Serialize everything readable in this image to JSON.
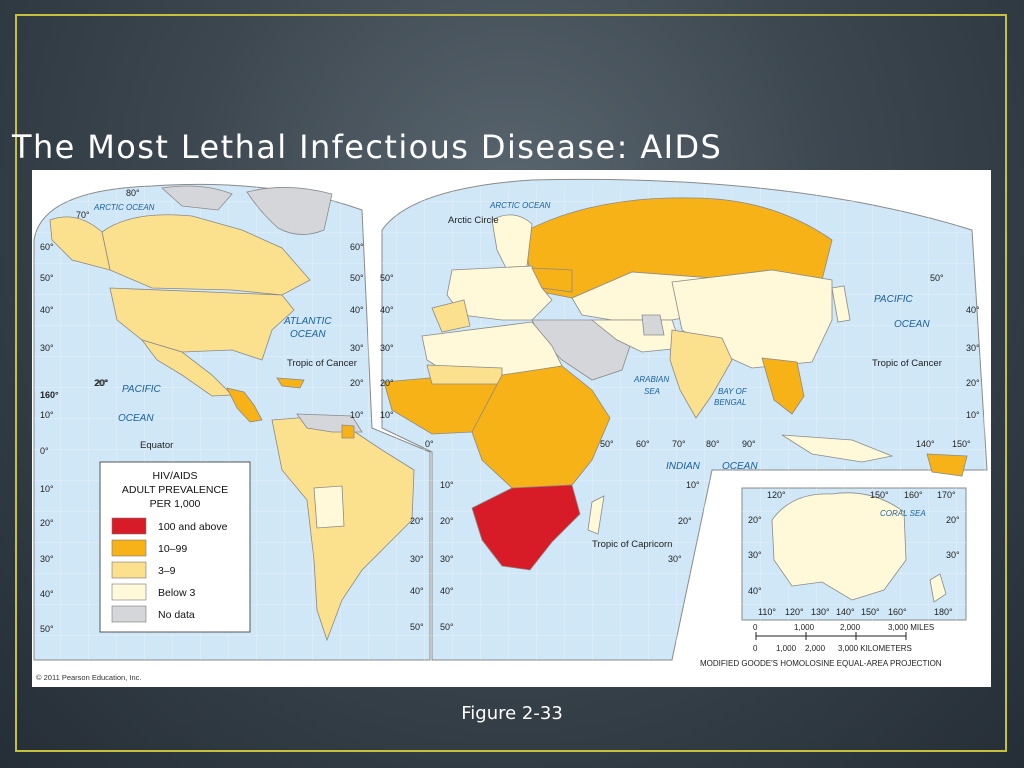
{
  "slide": {
    "title": "The Most Lethal Infectious Disease: AIDS",
    "caption": "Figure 2-33"
  },
  "map": {
    "copyright": "© 2011 Pearson Education, Inc.",
    "projection_note": "MODIFIED GOODE'S HOMOLOSINE EQUAL-AREA PROJECTION",
    "places": {
      "arctic_ocean_left": "ARCTIC OCEAN",
      "arctic_ocean_right": "ARCTIC OCEAN",
      "arctic_circle": "Arctic Circle",
      "atlantic_line1": "ATLANTIC",
      "atlantic_line2": "OCEAN",
      "tropic_cancer_left": "Tropic of Cancer",
      "tropic_cancer_right": "Tropic of Cancer",
      "pacific_left_line1": "PACIFIC",
      "pacific_left_line2": "OCEAN",
      "pacific_right_line1": "PACIFIC",
      "pacific_right_line2": "OCEAN",
      "equator": "Equator",
      "arabian_line1": "ARABIAN",
      "arabian_line2": "SEA",
      "bengal_line1": "BAY OF",
      "bengal_line2": "BENGAL",
      "indian": "INDIAN",
      "indian_ocean": "OCEAN",
      "tropic_capricorn": "Tropic of Capricorn",
      "coral_sea": "CORAL SEA"
    },
    "graticule": {
      "left_lats": [
        "80°",
        "70°",
        "60°",
        "50°",
        "40°",
        "30°",
        "20°",
        "10°",
        "0°",
        "10°",
        "20°",
        "30°",
        "40°",
        "50°"
      ],
      "mid_lats": [
        "60°",
        "50°",
        "40°",
        "30°",
        "20°",
        "10°"
      ],
      "mid_lats_south": [
        "20°",
        "30°",
        "40°",
        "50°"
      ],
      "center_lats": [
        "50°",
        "40°",
        "30°",
        "20°",
        "10°",
        "0°",
        "10°",
        "20°",
        "30°",
        "40°",
        "50°"
      ],
      "africa_lats": [
        "10°",
        "20°",
        "30°",
        "40°",
        "50°"
      ],
      "right_lats": [
        "50°",
        "40°",
        "30°",
        "20°",
        "10°"
      ],
      "east_lats_s": [
        "10°",
        "20°",
        "30°"
      ],
      "mid_lons": [
        "50°",
        "60°",
        "70°",
        "80°",
        "90°"
      ],
      "east_lons": [
        "140°",
        "150°"
      ],
      "inset_top_lons": [
        "120°",
        "150°",
        "160°",
        "170°"
      ],
      "inset_bottom_lons": [
        "110°",
        "120°",
        "130°",
        "140°",
        "150°",
        "160°",
        "180°"
      ],
      "inset_left_lats": [
        "20°",
        "30°",
        "40°"
      ],
      "inset_right_lats": [
        "20°",
        "30°"
      ],
      "far_lon": "160°",
      "lat_20": "20°"
    },
    "scale_bar": {
      "miles": [
        "0",
        "1,000",
        "2,000",
        "3,000 MILES"
      ],
      "km": [
        "0",
        "1,000",
        "2,000",
        "3,000 KILOMETERS"
      ]
    },
    "legend": {
      "title_line1": "HIV/AIDS",
      "title_line2": "ADULT PREVALENCE",
      "title_line3": "PER 1,000",
      "items": [
        {
          "label": "100 and above",
          "color": "#d81c27"
        },
        {
          "label": "10–99",
          "color": "#f7b217"
        },
        {
          "label": "3–9",
          "color": "#fbe08d"
        },
        {
          "label": "Below 3",
          "color": "#fff8d9"
        },
        {
          "label": "No data",
          "color": "#d4d6da"
        }
      ]
    },
    "colors": {
      "ocean": "#cfe7f6",
      "grid": "#ffffff",
      "border": "#8a8a8a",
      "frame_accent": "#c7c03a"
    }
  }
}
